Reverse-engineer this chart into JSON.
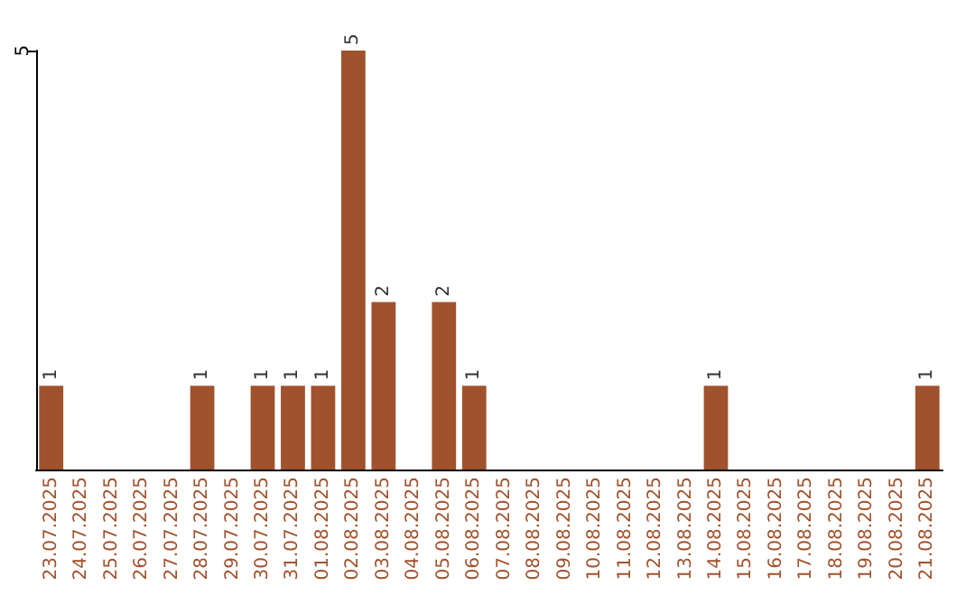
{
  "chart_data": {
    "type": "bar",
    "categories": [
      "23.07.2025",
      "24.07.2025",
      "25.07.2025",
      "26.07.2025",
      "27.07.2025",
      "28.07.2025",
      "29.07.2025",
      "30.07.2025",
      "31.07.2025",
      "01.08.2025",
      "02.08.2025",
      "03.08.2025",
      "04.08.2025",
      "05.08.2025",
      "06.08.2025",
      "07.08.2025",
      "08.08.2025",
      "09.08.2025",
      "10.08.2025",
      "11.08.2025",
      "12.08.2025",
      "13.08.2025",
      "14.08.2025",
      "15.08.2025",
      "16.08.2025",
      "17.08.2025",
      "18.08.2025",
      "19.08.2025",
      "20.08.2025",
      "21.08.2025"
    ],
    "values": [
      1,
      0,
      0,
      0,
      0,
      1,
      0,
      1,
      1,
      1,
      5,
      2,
      0,
      2,
      1,
      0,
      0,
      0,
      0,
      0,
      0,
      0,
      1,
      0,
      0,
      0,
      0,
      0,
      0,
      1
    ],
    "value_labels": [
      "1",
      null,
      null,
      null,
      null,
      "1",
      null,
      "1",
      "1",
      "1",
      "5",
      "2",
      null,
      "2",
      "1",
      null,
      null,
      null,
      null,
      null,
      null,
      null,
      "1",
      null,
      null,
      null,
      null,
      null,
      null,
      "1"
    ],
    "color": "#a0522d",
    "ylim": [
      0,
      5
    ],
    "yticks": [
      5
    ]
  }
}
